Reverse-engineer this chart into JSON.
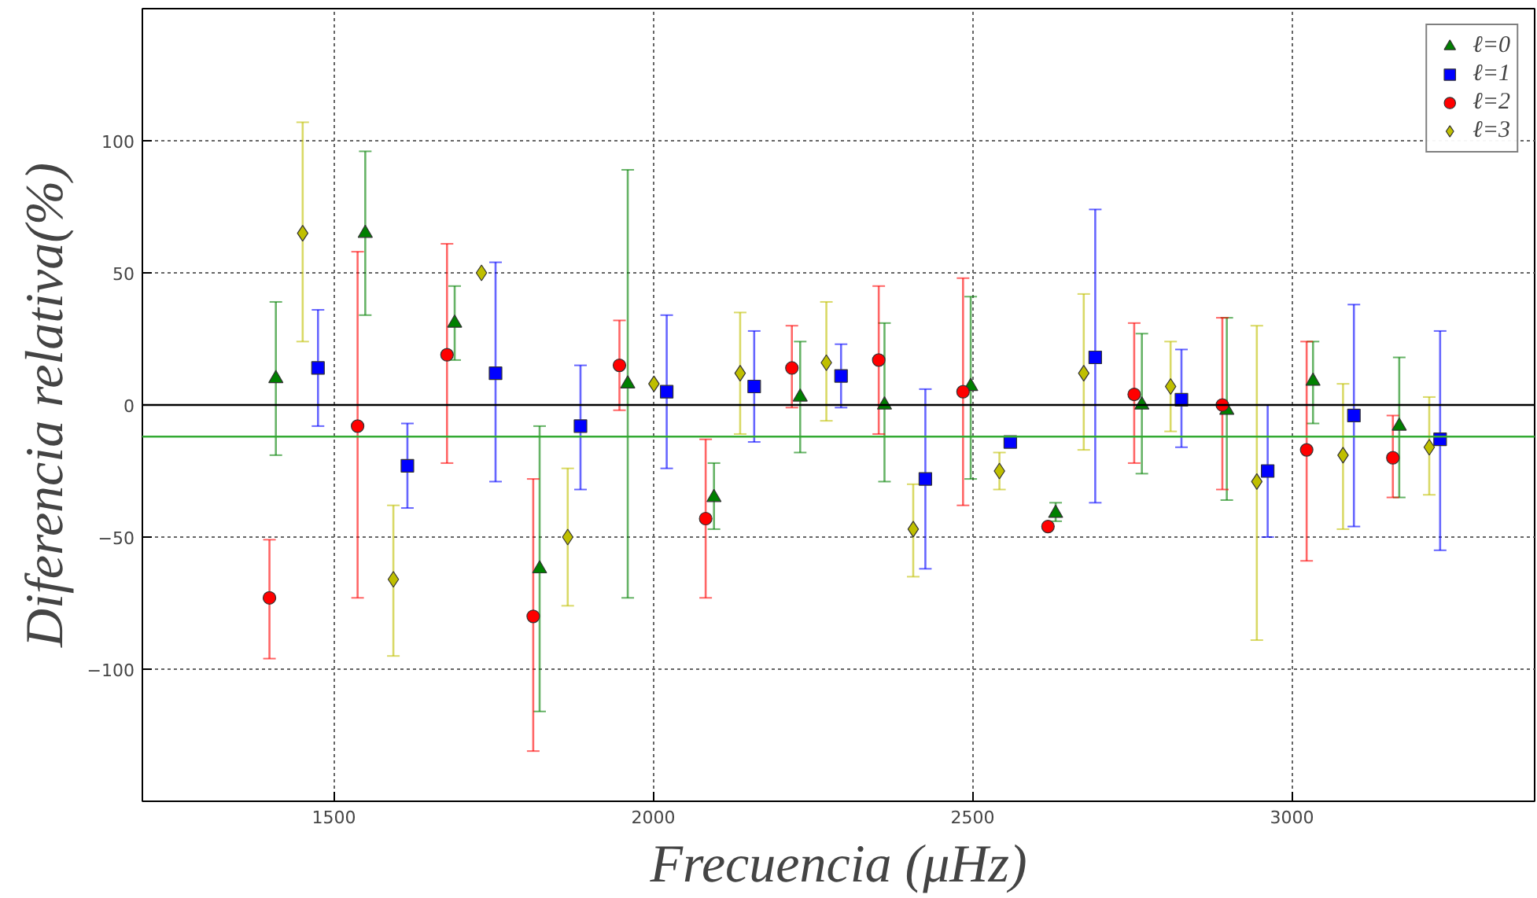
{
  "chart_data": {
    "type": "scatter",
    "xlabel": "Frecuencia (μHz)",
    "ylabel": "Diferencia relativa(%)",
    "xlim": [
      1200,
      3380
    ],
    "ylim": [
      -150,
      150
    ],
    "xticks": [
      1500,
      2000,
      2500,
      3000
    ],
    "yticks": [
      -100,
      -50,
      0,
      50,
      100
    ],
    "grid": true,
    "legend": "top right",
    "ref_lines": [
      {
        "axis": "y",
        "value": 0,
        "label": null,
        "color": "#000000"
      },
      {
        "axis": "y",
        "value": -12,
        "label": null,
        "color": "#33aa33"
      }
    ],
    "series": [
      {
        "name": "ℓ=0",
        "color": "#008000",
        "marker": "triangle",
        "x": [
          1409,
          1549,
          1689,
          1822,
          1960,
          2095,
          2230,
          2362,
          2497,
          2630,
          2765,
          2898,
          3033,
          3168
        ],
        "values": [
          10,
          65,
          31,
          -62,
          8,
          -35,
          3,
          0,
          7,
          -41,
          0,
          -2,
          9,
          -8
        ],
        "errors": [
          [
            -19,
            39
          ],
          [
            34,
            96
          ],
          [
            17,
            45
          ],
          [
            -116,
            -8
          ],
          [
            -73,
            89
          ],
          [
            -47,
            -22
          ],
          [
            -18,
            24
          ],
          [
            -29,
            31
          ],
          [
            -28,
            41
          ],
          [
            -44,
            -37
          ],
          [
            -26,
            27
          ],
          [
            -36,
            33
          ],
          [
            -7,
            24
          ],
          [
            -35,
            18
          ]
        ]
      },
      {
        "name": "ℓ=1",
        "color": "#0000ff",
        "marker": "square",
        "x": [
          1475,
          1615,
          1753,
          1886,
          2021,
          2158,
          2294,
          2426,
          2559,
          2692,
          2827,
          2962,
          3097,
          3232
        ],
        "values": [
          14,
          -23,
          12,
          -8,
          5,
          7,
          11,
          -28,
          -14,
          18,
          2,
          -25,
          -4,
          -13
        ],
        "errors": [
          [
            -8,
            36
          ],
          [
            -39,
            -7
          ],
          [
            -29,
            54
          ],
          [
            -32,
            15
          ],
          [
            -24,
            34
          ],
          [
            -14,
            28
          ],
          [
            -1,
            23
          ],
          [
            -62,
            6
          ],
          null,
          [
            -37,
            74
          ],
          [
            -16,
            21
          ],
          [
            -50,
            0
          ],
          [
            -46,
            38
          ],
          [
            -55,
            28
          ]
        ]
      },
      {
        "name": "ℓ=2",
        "color": "#ff0000",
        "marker": "circle",
        "x": [
          1399,
          1537,
          1677,
          1812,
          1947,
          2082,
          2217,
          2353,
          2485,
          2618,
          2753,
          2891,
          3023,
          3158
        ],
        "values": [
          -73,
          -8,
          19,
          -80,
          15,
          -43,
          14,
          17,
          5,
          -46,
          4,
          0,
          -17,
          -20
        ],
        "errors": [
          [
            -96,
            -51
          ],
          [
            -73,
            58
          ],
          [
            -22,
            61
          ],
          [
            -131,
            -28
          ],
          [
            -2,
            32
          ],
          [
            -73,
            -13
          ],
          [
            -1,
            30
          ],
          [
            -11,
            45
          ],
          [
            -38,
            48
          ],
          null,
          [
            -22,
            31
          ],
          [
            -32,
            33
          ],
          [
            -59,
            24
          ],
          [
            -35,
            -4
          ]
        ]
      },
      {
        "name": "ℓ=3",
        "color": "#bfbf00",
        "marker": "diamond",
        "x": [
          1451,
          1593,
          1731,
          1866,
          2001,
          2136,
          2271,
          2407,
          2542,
          2674,
          2810,
          2945,
          3080,
          3215
        ],
        "values": [
          65,
          -66,
          50,
          -50,
          8,
          12,
          16,
          -47,
          -25,
          12,
          7,
          -29,
          -19,
          -16
        ],
        "errors": [
          [
            24,
            107
          ],
          [
            -95,
            -38
          ],
          null,
          [
            -76,
            -24
          ],
          null,
          [
            -11,
            35
          ],
          [
            -6,
            39
          ],
          [
            -65,
            -30
          ],
          [
            -32,
            -18
          ],
          [
            -17,
            42
          ],
          [
            -10,
            24
          ],
          [
            -89,
            30
          ],
          [
            -47,
            8
          ],
          [
            -34,
            3
          ]
        ]
      }
    ]
  }
}
